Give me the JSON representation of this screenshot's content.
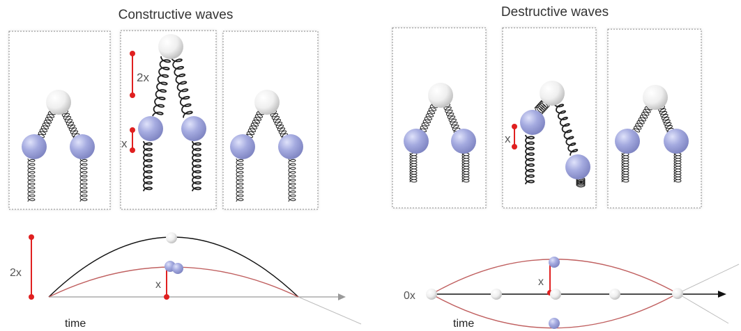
{
  "constructive": {
    "title": "Constructive waves",
    "label_2x_top": "2x",
    "label_x_mid": "x",
    "label_2x_graph": "2x",
    "label_x_graph": "x",
    "time_label": "time"
  },
  "destructive": {
    "title": "Destructive waves",
    "label_x_mid": "x",
    "label_0x_graph": "0x",
    "label_x_graph": "x",
    "time_label": "time"
  },
  "colors": {
    "spring": "#1e1e1e",
    "mass_blue": "#9aa0d8",
    "mass_white": "#f2f2f2",
    "marker_red": "#e02020",
    "wave_red": "#c06060",
    "wave_black": "#111111",
    "axis_grey": "#9a9a9a",
    "box_border": "#888888"
  }
}
